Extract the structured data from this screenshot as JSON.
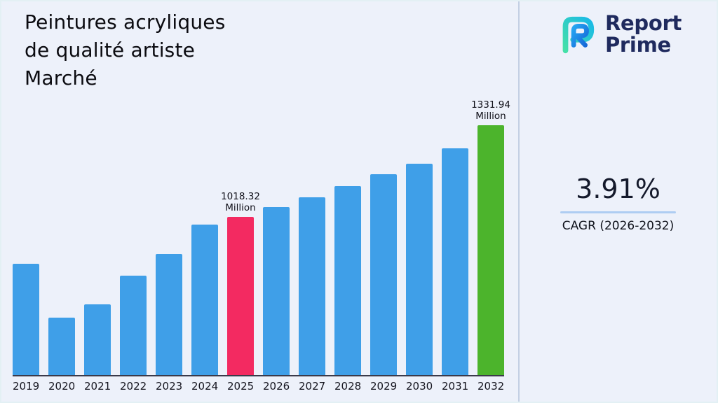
{
  "title": {
    "lines": [
      "Peintures acryliques",
      "de qualité artiste",
      "Marché"
    ]
  },
  "brand": {
    "line1": "Report",
    "line2": "Prime"
  },
  "stats": {
    "cagr_value": "3.91%",
    "cagr_label": "CAGR (2026-2032)"
  },
  "chart_data": {
    "type": "bar",
    "title": "Peintures acryliques de qualité artiste Marché",
    "unit": "Million",
    "categories": [
      "2019",
      "2020",
      "2021",
      "2022",
      "2023",
      "2024",
      "2025",
      "2026",
      "2027",
      "2028",
      "2029",
      "2030",
      "2031",
      "2032"
    ],
    "values": [
      858,
      674,
      719,
      817,
      891,
      992,
      1018.32,
      1052,
      1085,
      1124,
      1164,
      1200,
      1253,
      1331.94
    ],
    "labeled_points": [
      {
        "category": "2025",
        "value": 1018.32
      },
      {
        "category": "2032",
        "value": 1331.94
      }
    ],
    "annotations": [
      {
        "category": "2025",
        "line1": "1018.32",
        "line2": "Million"
      },
      {
        "category": "2032",
        "line1": "1331.94",
        "line2": "Million"
      }
    ],
    "colors": {
      "default": "#3f9fe8",
      "overrides": {
        "2025": "#f32a61",
        "2032": "#4cb42c"
      }
    },
    "axis": {
      "baseline_color": "#3a3a4a",
      "gridlines": false
    },
    "legend": false
  }
}
